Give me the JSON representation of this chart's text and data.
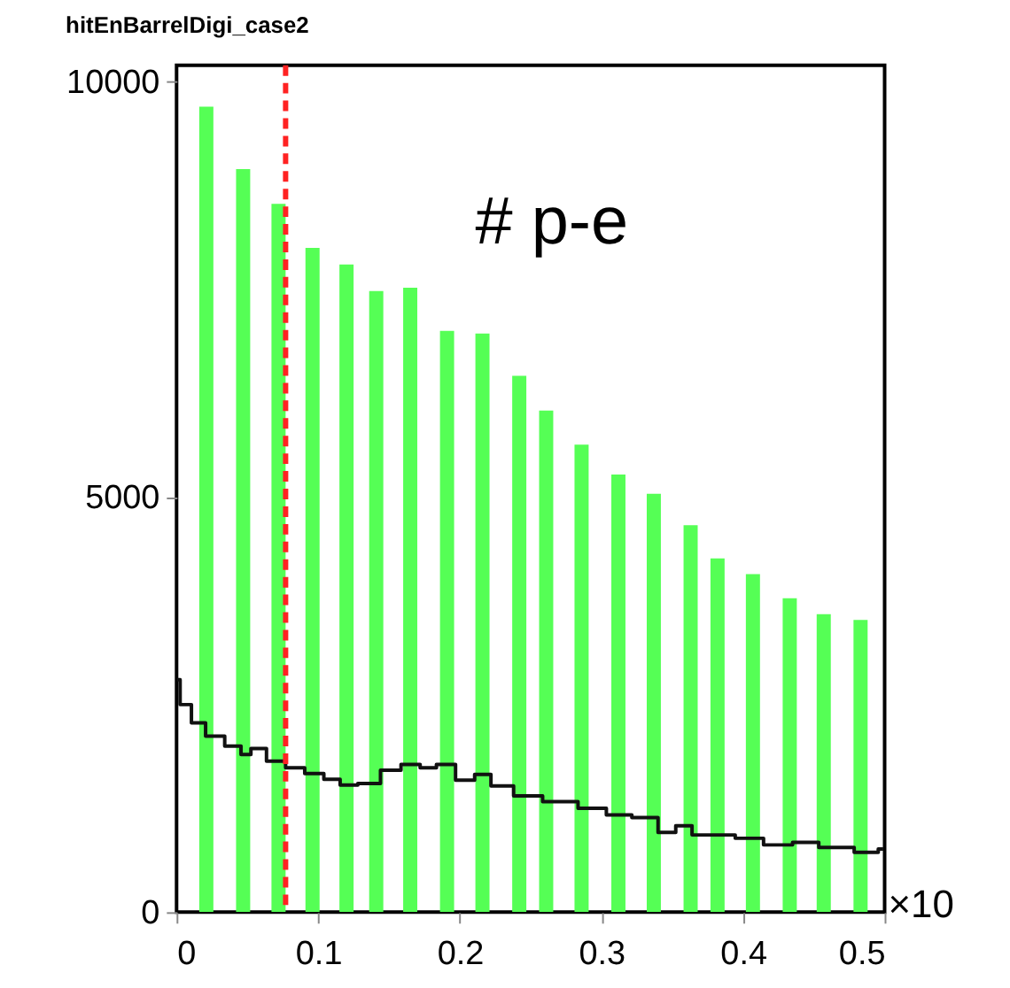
{
  "chart_data": {
    "type": "bar",
    "title": "hitEnBarrelDigi_case2",
    "annotations": [
      "# p-e",
      "×10"
    ],
    "xlim": [
      0,
      0.5
    ],
    "xticks": [
      0,
      0.1,
      0.2,
      0.3,
      0.4,
      0.5
    ],
    "ylim": [
      0,
      10200
    ],
    "yticks": [
      0,
      5000,
      10000
    ],
    "grid": false,
    "series": [
      {
        "color": "#55ff55",
        "x": [
          0.021,
          0.047,
          0.072,
          0.096,
          0.12,
          0.141,
          0.165,
          0.191,
          0.216,
          0.242,
          0.261,
          0.286,
          0.312,
          0.337,
          0.363,
          0.382,
          0.407,
          0.433,
          0.457,
          0.483
        ],
        "values": [
          9700,
          8950,
          8530,
          8000,
          7800,
          7480,
          7520,
          7000,
          6970,
          6460,
          6040,
          5630,
          5270,
          5040,
          4660,
          4260,
          4070,
          3780,
          3590,
          3520
        ]
      },
      {
        "type": "step",
        "color": "#111111",
        "x": [
          0,
          0.005,
          0.016,
          0.025,
          0.043,
          0.048,
          0.057,
          0.07,
          0.084,
          0.097,
          0.111,
          0.12,
          0.136,
          0.152,
          0.165,
          0.179,
          0.188,
          0.206,
          0.215,
          0.229,
          0.247,
          0.27,
          0.297,
          0.31,
          0.333,
          0.347,
          0.358,
          0.37,
          0.388,
          0.401,
          0.428,
          0.442,
          0.465,
          0.492,
          0.499
        ],
        "values": [
          2800,
          2500,
          2280,
          2120,
          2000,
          1900,
          1970,
          1820,
          1740,
          1670,
          1600,
          1530,
          1550,
          1710,
          1780,
          1740,
          1780,
          1590,
          1660,
          1520,
          1400,
          1330,
          1250,
          1170,
          1140,
          960,
          1040,
          930,
          930,
          890,
          810,
          840,
          780,
          720,
          760
        ]
      }
    ],
    "ref_lines": [
      {
        "axis": "x",
        "value": 0.077,
        "color": "#ff2222",
        "line_style": "dashed"
      }
    ]
  }
}
